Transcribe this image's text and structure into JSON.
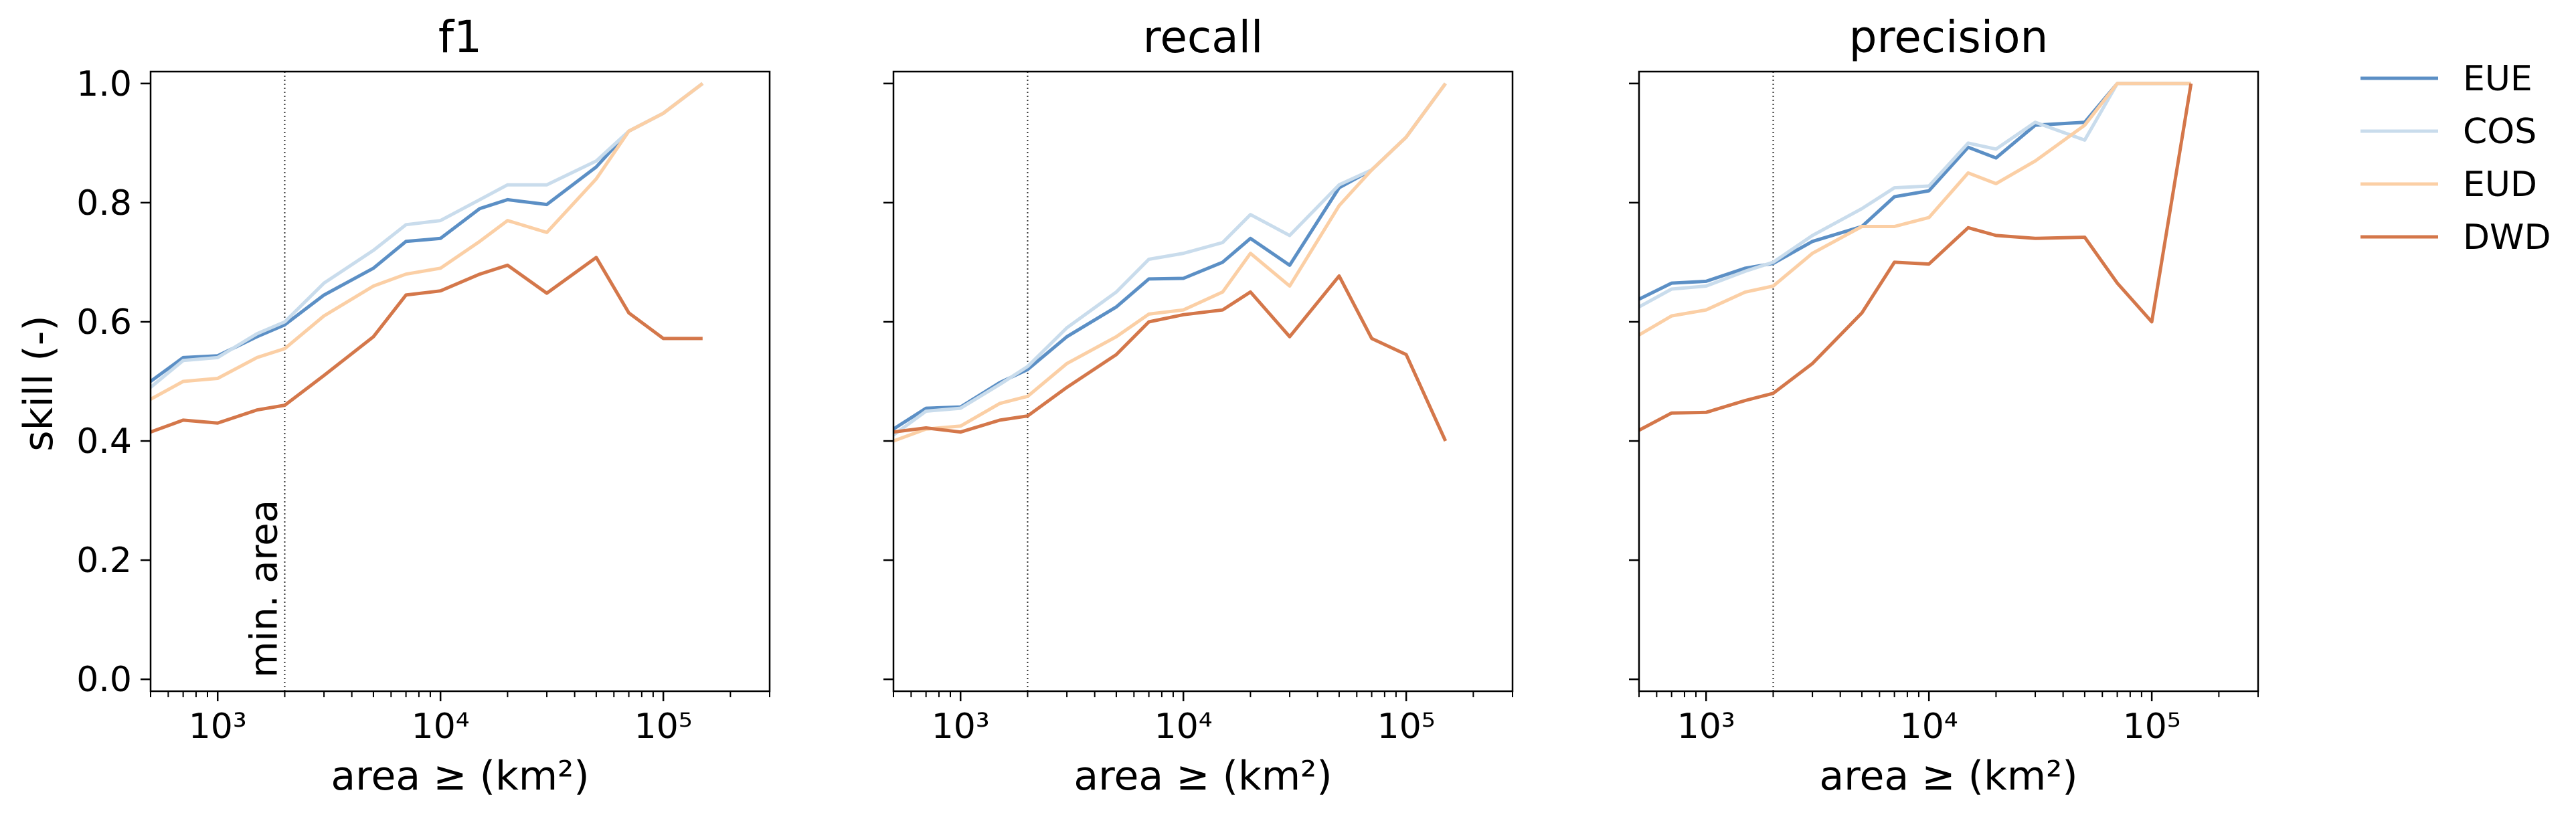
{
  "figure": {
    "ylabel": "skill (-)",
    "annotation": "min. area",
    "legend_placement": "outside-right"
  },
  "chart_data": [
    {
      "type": "line",
      "title": "f1",
      "xlabel": "area ≥ (km²)",
      "ylabel": "skill (-)",
      "xscale": "log",
      "xlim": [
        500,
        300000
      ],
      "ylim": [
        -0.02,
        1.02
      ],
      "xticks": [
        {
          "value": 1000,
          "label": "10³"
        },
        {
          "value": 10000,
          "label": "10⁴"
        },
        {
          "value": 100000,
          "label": "10⁵"
        }
      ],
      "yticks": [
        "0.0",
        "0.2",
        "0.4",
        "0.6",
        "0.8",
        "1.0"
      ],
      "vline_x": 2000,
      "series": [
        {
          "name": "EUE",
          "color": "#5b8fc5",
          "points": [
            [
              500,
              0.5
            ],
            [
              700,
              0.54
            ],
            [
              1000,
              0.543
            ],
            [
              1500,
              0.575
            ],
            [
              2000,
              0.595
            ],
            [
              3000,
              0.645
            ],
            [
              5000,
              0.69
            ],
            [
              7000,
              0.735
            ],
            [
              10000,
              0.74
            ],
            [
              15000,
              0.79
            ],
            [
              20000,
              0.805
            ],
            [
              30000,
              0.797
            ],
            [
              50000,
              0.86
            ],
            [
              70000,
              0.92
            ],
            [
              100000,
              0.95
            ],
            [
              150000,
              1.0
            ]
          ]
        },
        {
          "name": "COS",
          "color": "#c9dcec",
          "points": [
            [
              500,
              0.49
            ],
            [
              700,
              0.535
            ],
            [
              1000,
              0.54
            ],
            [
              1500,
              0.58
            ],
            [
              2000,
              0.6
            ],
            [
              3000,
              0.665
            ],
            [
              5000,
              0.72
            ],
            [
              7000,
              0.763
            ],
            [
              10000,
              0.77
            ],
            [
              15000,
              0.805
            ],
            [
              20000,
              0.83
            ],
            [
              30000,
              0.83
            ],
            [
              50000,
              0.87
            ],
            [
              70000,
              0.92
            ],
            [
              100000,
              0.95
            ],
            [
              150000,
              1.0
            ]
          ]
        },
        {
          "name": "EUD",
          "color": "#fbcfa5",
          "points": [
            [
              500,
              0.47
            ],
            [
              700,
              0.5
            ],
            [
              1000,
              0.505
            ],
            [
              1500,
              0.54
            ],
            [
              2000,
              0.555
            ],
            [
              3000,
              0.61
            ],
            [
              5000,
              0.66
            ],
            [
              7000,
              0.68
            ],
            [
              10000,
              0.69
            ],
            [
              15000,
              0.735
            ],
            [
              20000,
              0.77
            ],
            [
              30000,
              0.75
            ],
            [
              50000,
              0.84
            ],
            [
              70000,
              0.92
            ],
            [
              100000,
              0.95
            ],
            [
              150000,
              1.0
            ]
          ]
        },
        {
          "name": "DWD",
          "color": "#d4774a",
          "points": [
            [
              500,
              0.415
            ],
            [
              700,
              0.435
            ],
            [
              1000,
              0.43
            ],
            [
              1500,
              0.452
            ],
            [
              2000,
              0.46
            ],
            [
              3000,
              0.51
            ],
            [
              5000,
              0.575
            ],
            [
              7000,
              0.645
            ],
            [
              10000,
              0.652
            ],
            [
              15000,
              0.68
            ],
            [
              20000,
              0.695
            ],
            [
              30000,
              0.648
            ],
            [
              50000,
              0.708
            ],
            [
              70000,
              0.615
            ],
            [
              100000,
              0.572
            ],
            [
              150000,
              0.572
            ]
          ]
        }
      ]
    },
    {
      "type": "line",
      "title": "recall",
      "xlabel": "area ≥ (km²)",
      "xscale": "log",
      "xlim": [
        500,
        300000
      ],
      "ylim": [
        -0.02,
        1.02
      ],
      "xticks": [
        {
          "value": 1000,
          "label": "10³"
        },
        {
          "value": 10000,
          "label": "10⁴"
        },
        {
          "value": 100000,
          "label": "10⁵"
        }
      ],
      "vline_x": 2000,
      "series": [
        {
          "name": "EUE",
          "color": "#5b8fc5",
          "points": [
            [
              500,
              0.42
            ],
            [
              700,
              0.455
            ],
            [
              1000,
              0.457
            ],
            [
              1500,
              0.498
            ],
            [
              2000,
              0.52
            ],
            [
              3000,
              0.575
            ],
            [
              5000,
              0.625
            ],
            [
              7000,
              0.672
            ],
            [
              10000,
              0.673
            ],
            [
              15000,
              0.7
            ],
            [
              20000,
              0.74
            ],
            [
              30000,
              0.695
            ],
            [
              50000,
              0.825
            ],
            [
              70000,
              0.855
            ],
            [
              100000,
              0.91
            ],
            [
              150000,
              1.0
            ]
          ]
        },
        {
          "name": "COS",
          "color": "#c9dcec",
          "points": [
            [
              500,
              0.41
            ],
            [
              700,
              0.45
            ],
            [
              1000,
              0.455
            ],
            [
              1500,
              0.495
            ],
            [
              2000,
              0.525
            ],
            [
              3000,
              0.59
            ],
            [
              5000,
              0.65
            ],
            [
              7000,
              0.705
            ],
            [
              10000,
              0.715
            ],
            [
              15000,
              0.733
            ],
            [
              20000,
              0.78
            ],
            [
              30000,
              0.745
            ],
            [
              50000,
              0.83
            ],
            [
              70000,
              0.855
            ],
            [
              100000,
              0.91
            ],
            [
              150000,
              1.0
            ]
          ]
        },
        {
          "name": "EUD",
          "color": "#fbcfa5",
          "points": [
            [
              500,
              0.4
            ],
            [
              700,
              0.42
            ],
            [
              1000,
              0.425
            ],
            [
              1500,
              0.463
            ],
            [
              2000,
              0.475
            ],
            [
              3000,
              0.53
            ],
            [
              5000,
              0.575
            ],
            [
              7000,
              0.613
            ],
            [
              10000,
              0.62
            ],
            [
              15000,
              0.65
            ],
            [
              20000,
              0.715
            ],
            [
              30000,
              0.66
            ],
            [
              50000,
              0.795
            ],
            [
              70000,
              0.855
            ],
            [
              100000,
              0.91
            ],
            [
              150000,
              1.0
            ]
          ]
        },
        {
          "name": "DWD",
          "color": "#d4774a",
          "points": [
            [
              500,
              0.415
            ],
            [
              700,
              0.422
            ],
            [
              1000,
              0.415
            ],
            [
              1500,
              0.435
            ],
            [
              2000,
              0.442
            ],
            [
              3000,
              0.49
            ],
            [
              5000,
              0.545
            ],
            [
              7000,
              0.6
            ],
            [
              10000,
              0.612
            ],
            [
              15000,
              0.62
            ],
            [
              20000,
              0.65
            ],
            [
              30000,
              0.575
            ],
            [
              50000,
              0.677
            ],
            [
              70000,
              0.572
            ],
            [
              100000,
              0.545
            ],
            [
              150000,
              0.4
            ]
          ]
        }
      ]
    },
    {
      "type": "line",
      "title": "precision",
      "xlabel": "area ≥ (km²)",
      "xscale": "log",
      "xlim": [
        500,
        300000
      ],
      "ylim": [
        -0.02,
        1.02
      ],
      "xticks": [
        {
          "value": 1000,
          "label": "10³"
        },
        {
          "value": 10000,
          "label": "10⁴"
        },
        {
          "value": 100000,
          "label": "10⁵"
        }
      ],
      "vline_x": 2000,
      "series": [
        {
          "name": "EUE",
          "color": "#5b8fc5",
          "points": [
            [
              500,
              0.638
            ],
            [
              700,
              0.665
            ],
            [
              1000,
              0.668
            ],
            [
              1500,
              0.69
            ],
            [
              2000,
              0.698
            ],
            [
              3000,
              0.735
            ],
            [
              5000,
              0.76
            ],
            [
              7000,
              0.81
            ],
            [
              10000,
              0.82
            ],
            [
              15000,
              0.893
            ],
            [
              20000,
              0.875
            ],
            [
              30000,
              0.93
            ],
            [
              50000,
              0.935
            ],
            [
              70000,
              1.0
            ],
            [
              100000,
              1.0
            ],
            [
              150000,
              1.0
            ]
          ]
        },
        {
          "name": "COS",
          "color": "#c9dcec",
          "points": [
            [
              500,
              0.625
            ],
            [
              700,
              0.655
            ],
            [
              1000,
              0.66
            ],
            [
              1500,
              0.685
            ],
            [
              2000,
              0.7
            ],
            [
              3000,
              0.745
            ],
            [
              5000,
              0.79
            ],
            [
              7000,
              0.825
            ],
            [
              10000,
              0.828
            ],
            [
              15000,
              0.9
            ],
            [
              20000,
              0.89
            ],
            [
              30000,
              0.935
            ],
            [
              50000,
              0.905
            ],
            [
              70000,
              1.0
            ],
            [
              100000,
              1.0
            ],
            [
              150000,
              1.0
            ]
          ]
        },
        {
          "name": "EUD",
          "color": "#fbcfa5",
          "points": [
            [
              500,
              0.578
            ],
            [
              700,
              0.61
            ],
            [
              1000,
              0.62
            ],
            [
              1500,
              0.65
            ],
            [
              2000,
              0.66
            ],
            [
              3000,
              0.715
            ],
            [
              5000,
              0.76
            ],
            [
              7000,
              0.76
            ],
            [
              10000,
              0.775
            ],
            [
              15000,
              0.85
            ],
            [
              20000,
              0.832
            ],
            [
              30000,
              0.87
            ],
            [
              50000,
              0.93
            ],
            [
              70000,
              1.0
            ],
            [
              100000,
              1.0
            ],
            [
              150000,
              1.0
            ]
          ]
        },
        {
          "name": "DWD",
          "color": "#d4774a",
          "points": [
            [
              500,
              0.418
            ],
            [
              700,
              0.447
            ],
            [
              1000,
              0.448
            ],
            [
              1500,
              0.468
            ],
            [
              2000,
              0.48
            ],
            [
              3000,
              0.53
            ],
            [
              5000,
              0.615
            ],
            [
              7000,
              0.7
            ],
            [
              10000,
              0.697
            ],
            [
              15000,
              0.758
            ],
            [
              20000,
              0.745
            ],
            [
              30000,
              0.74
            ],
            [
              50000,
              0.742
            ],
            [
              70000,
              0.665
            ],
            [
              100000,
              0.6
            ],
            [
              150000,
              1.0
            ]
          ]
        }
      ]
    }
  ]
}
